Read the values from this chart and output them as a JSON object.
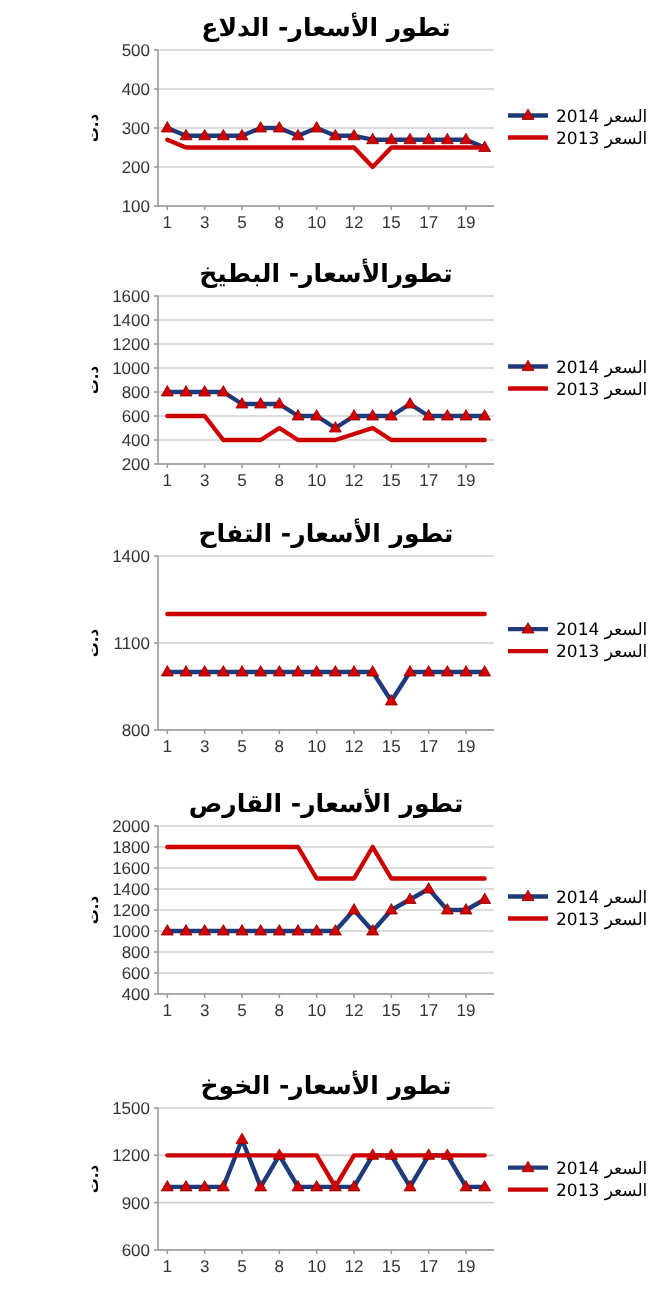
{
  "chart_data": [
    {
      "type": "line",
      "title": "تطور الأسعار- الدلاع",
      "ylabel": "د.ت",
      "categories": [
        "1",
        null,
        "3",
        null,
        "5",
        null,
        "8",
        null,
        "10",
        null,
        "12",
        null,
        "15",
        null,
        "17",
        null,
        "19",
        null
      ],
      "series": [
        {
          "name": "السعر 2014",
          "color": "#1f3a7a",
          "marker": "triangle",
          "values": [
            300,
            280,
            280,
            280,
            280,
            300,
            300,
            280,
            300,
            280,
            280,
            270,
            270,
            270,
            270,
            270,
            270,
            250
          ]
        },
        {
          "name": "السعر 2013",
          "color": "#cc0000",
          "marker": "none",
          "values": [
            270,
            250,
            250,
            250,
            250,
            250,
            250,
            250,
            250,
            250,
            250,
            200,
            250,
            250,
            250,
            250,
            250,
            250
          ]
        }
      ],
      "ylim": [
        100,
        500
      ],
      "yticks": [
        100,
        200,
        300,
        400,
        500
      ],
      "grid": "y",
      "legend": "right"
    },
    {
      "type": "line",
      "title": "تطورالأسعار- البطيخ",
      "ylabel": "د.ت",
      "categories": [
        "1",
        null,
        "3",
        null,
        "5",
        null,
        "8",
        null,
        "10",
        null,
        "12",
        null,
        "15",
        null,
        "17",
        null,
        "19",
        null
      ],
      "series": [
        {
          "name": "السعر 2014",
          "color": "#1f3a7a",
          "marker": "triangle",
          "values": [
            800,
            800,
            800,
            800,
            700,
            700,
            700,
            600,
            600,
            500,
            600,
            600,
            600,
            700,
            600,
            600,
            600,
            600
          ]
        },
        {
          "name": "السعر 2013",
          "color": "#cc0000",
          "marker": "none",
          "values": [
            600,
            600,
            600,
            400,
            400,
            400,
            500,
            400,
            400,
            400,
            450,
            500,
            400,
            400,
            400,
            400,
            400,
            400
          ]
        }
      ],
      "ylim": [
        200,
        1600
      ],
      "yticks": [
        200,
        400,
        600,
        800,
        1000,
        1200,
        1400,
        1600
      ],
      "grid": "y",
      "legend": "right"
    },
    {
      "type": "line",
      "title": "تطور الأسعار- التفاح",
      "ylabel": "د.ت",
      "categories": [
        "1",
        null,
        "3",
        null,
        "5",
        null,
        "8",
        null,
        "10",
        null,
        "12",
        null,
        "15",
        null,
        "17",
        null,
        "19",
        null
      ],
      "series": [
        {
          "name": "السعر 2014",
          "color": "#1f3a7a",
          "marker": "triangle",
          "values": [
            1000,
            1000,
            1000,
            1000,
            1000,
            1000,
            1000,
            1000,
            1000,
            1000,
            1000,
            1000,
            900,
            1000,
            1000,
            1000,
            1000,
            1000
          ]
        },
        {
          "name": "السعر 2013",
          "color": "#cc0000",
          "marker": "none",
          "values": [
            1200,
            1200,
            1200,
            1200,
            1200,
            1200,
            1200,
            1200,
            1200,
            1200,
            1200,
            1200,
            1200,
            1200,
            1200,
            1200,
            1200,
            1200
          ]
        }
      ],
      "ylim": [
        800,
        1400
      ],
      "yticks": [
        800,
        1100,
        1400
      ],
      "grid": "y",
      "legend": "right"
    },
    {
      "type": "line",
      "title": "تطور الأسعار- القارص",
      "ylabel": "د.ت",
      "categories": [
        "1",
        null,
        "3",
        null,
        "5",
        null,
        "8",
        null,
        "10",
        null,
        "12",
        null,
        "15",
        null,
        "17",
        null,
        "19",
        null
      ],
      "series": [
        {
          "name": "السعر 2014",
          "color": "#1f3a7a",
          "marker": "triangle",
          "values": [
            1000,
            1000,
            1000,
            1000,
            1000,
            1000,
            1000,
            1000,
            1000,
            1000,
            1200,
            1000,
            1200,
            1300,
            1400,
            1200,
            1200,
            1300
          ]
        },
        {
          "name": "السعر 2013",
          "color": "#cc0000",
          "marker": "none",
          "values": [
            1800,
            1800,
            1800,
            1800,
            1800,
            1800,
            1800,
            1800,
            1500,
            1500,
            1500,
            1800,
            1500,
            1500,
            1500,
            1500,
            1500,
            1500
          ]
        }
      ],
      "ylim": [
        400,
        2000
      ],
      "yticks": [
        400,
        600,
        800,
        1000,
        1200,
        1400,
        1600,
        1800,
        2000
      ],
      "grid": "y",
      "legend": "right"
    },
    {
      "type": "line",
      "title": "تطور الأسعار- الخوخ",
      "ylabel": "د.ت",
      "categories": [
        "1",
        null,
        "3",
        null,
        "5",
        null,
        "8",
        null,
        "10",
        null,
        "12",
        null,
        "15",
        null,
        "17",
        null,
        "19",
        null
      ],
      "series": [
        {
          "name": "السعر 2014",
          "color": "#1f3a7a",
          "marker": "triangle",
          "values": [
            1000,
            1000,
            1000,
            1000,
            1300,
            1000,
            1200,
            1000,
            1000,
            1000,
            1000,
            1200,
            1200,
            1000,
            1200,
            1200,
            1000,
            1000
          ]
        },
        {
          "name": "السعر 2013",
          "color": "#cc0000",
          "marker": "none",
          "values": [
            1200,
            1200,
            1200,
            1200,
            1200,
            1200,
            1200,
            1200,
            1200,
            1000,
            1200,
            1200,
            1200,
            1200,
            1200,
            1200,
            1200,
            1200
          ]
        }
      ],
      "ylim": [
        600,
        1500
      ],
      "yticks": [
        600,
        900,
        1200,
        1500
      ],
      "grid": "y",
      "legend": "right"
    }
  ]
}
